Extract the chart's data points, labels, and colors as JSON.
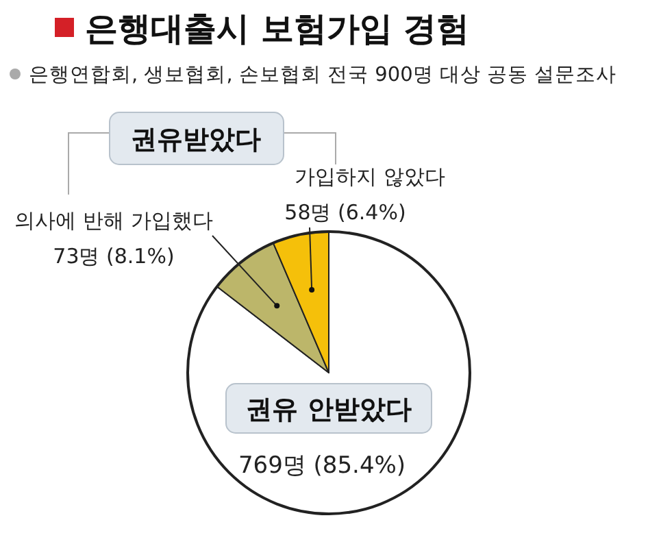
{
  "chart_data": {
    "type": "pie",
    "title": "은행대출시 보험가입 경험",
    "subtitle": "은행연합회, 생보협회, 손보협회 전국 900명 대상 공동 설문조사",
    "categories": [
      "권유 안받았다",
      "의사에 반해 가입했다",
      "가입하지 않았다"
    ],
    "values": [
      769,
      73,
      58
    ],
    "colors": [
      "#ffffff",
      "#bcb66a",
      "#f5c00a"
    ],
    "value_labels": [
      "769명 (85.4%)",
      "73명 (8.1%)",
      "58명 (6.4%)"
    ],
    "annotations": [
      "권유받았다"
    ]
  }
}
